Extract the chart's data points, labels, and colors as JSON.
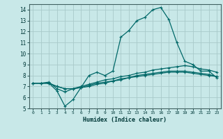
{
  "xlabel": "Humidex (Indice chaleur)",
  "bg_color": "#c8e8e8",
  "grid_color": "#a8caca",
  "line_color": "#006868",
  "xlim": [
    -0.5,
    23.5
  ],
  "ylim": [
    5,
    14.5
  ],
  "yticks": [
    5,
    6,
    7,
    8,
    9,
    10,
    11,
    12,
    13,
    14
  ],
  "xticks": [
    0,
    1,
    2,
    3,
    4,
    5,
    6,
    7,
    8,
    9,
    10,
    11,
    12,
    13,
    14,
    15,
    16,
    17,
    18,
    19,
    20,
    21,
    22,
    23
  ],
  "series": [
    {
      "x": [
        0,
        1,
        2,
        3,
        4,
        5,
        6,
        7,
        8,
        9,
        10,
        11,
        12,
        13,
        14,
        15,
        16,
        17,
        18,
        19,
        20,
        21,
        22,
        23
      ],
      "y": [
        7.3,
        7.3,
        7.3,
        6.6,
        5.2,
        5.8,
        6.9,
        8.0,
        8.3,
        8.0,
        8.4,
        11.5,
        12.1,
        13.0,
        13.3,
        14.0,
        14.2,
        13.1,
        11.0,
        9.3,
        9.0,
        8.4,
        8.4,
        7.8
      ]
    },
    {
      "x": [
        0,
        1,
        2,
        3,
        4,
        5,
        6,
        7,
        8,
        9,
        10,
        11,
        12,
        13,
        14,
        15,
        16,
        17,
        18,
        19,
        20,
        21,
        22,
        23
      ],
      "y": [
        7.3,
        7.3,
        7.4,
        6.8,
        6.5,
        6.8,
        7.0,
        7.2,
        7.4,
        7.6,
        7.7,
        7.9,
        8.0,
        8.2,
        8.3,
        8.5,
        8.6,
        8.7,
        8.8,
        8.9,
        8.8,
        8.6,
        8.5,
        8.3
      ]
    },
    {
      "x": [
        0,
        1,
        2,
        3,
        4,
        5,
        6,
        7,
        8,
        9,
        10,
        11,
        12,
        13,
        14,
        15,
        16,
        17,
        18,
        19,
        20,
        21,
        22,
        23
      ],
      "y": [
        7.3,
        7.3,
        7.3,
        7.0,
        6.8,
        6.8,
        6.9,
        7.0,
        7.2,
        7.3,
        7.5,
        7.6,
        7.8,
        7.9,
        8.0,
        8.1,
        8.2,
        8.3,
        8.3,
        8.3,
        8.2,
        8.1,
        8.0,
        7.9
      ]
    },
    {
      "x": [
        0,
        1,
        2,
        3,
        4,
        5,
        6,
        7,
        8,
        9,
        10,
        11,
        12,
        13,
        14,
        15,
        16,
        17,
        18,
        19,
        20,
        21,
        22,
        23
      ],
      "y": [
        7.3,
        7.3,
        7.3,
        7.0,
        6.8,
        6.8,
        6.9,
        7.1,
        7.3,
        7.4,
        7.5,
        7.7,
        7.8,
        8.0,
        8.1,
        8.2,
        8.3,
        8.4,
        8.4,
        8.4,
        8.3,
        8.2,
        8.1,
        7.9
      ]
    }
  ]
}
